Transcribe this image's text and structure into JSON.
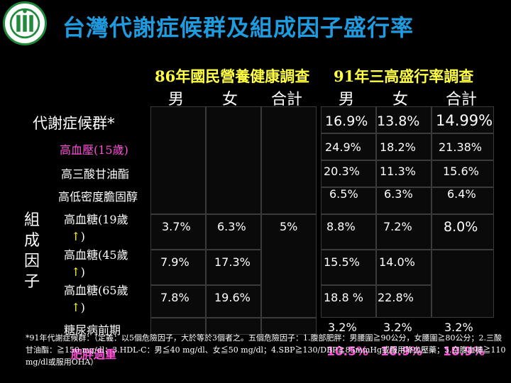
{
  "title": "台灣代謝症候群及組成因子盛行率",
  "survey1": {
    "name": "86年國民營養健康調查",
    "male": "男",
    "female": "女",
    "total": "合計"
  },
  "survey2": {
    "name": "91年三高盛行率調查",
    "male": "男",
    "female": "女",
    "total": "合計"
  },
  "rows": {
    "metabolic": {
      "label": "代謝症候群*",
      "v": [
        "16.9%",
        "13.8%",
        "14.99%"
      ]
    },
    "hypertension": {
      "label": "高血壓(15歲)",
      "v": [
        "24.9%",
        "18.2%",
        "21.38%"
      ]
    },
    "triglyceride": {
      "label": "高三酸甘油酯",
      "v": [
        "20.3%",
        "11.3%",
        "15.6%"
      ]
    },
    "hdl": {
      "label": "高低密度膽固醇",
      "v": [
        "6.5%",
        "6.3%",
        "6.4%"
      ]
    },
    "glucose19": {
      "label": "高血糖(19歲",
      "arrow": "↑",
      "close": ")",
      "a": [
        "3.7%",
        "6.3%",
        "5%"
      ],
      "b": [
        "8.8%",
        "7.2%",
        "8.0%"
      ]
    },
    "glucose45": {
      "label": "高血糖(45歲",
      "arrow": "↑",
      "close": ")",
      "a": [
        "7.9%",
        "17.3%"
      ],
      "b": [
        "15.5%",
        "14.0%"
      ]
    },
    "glucose65": {
      "label": "高血糖(65歲",
      "arrow": "↑",
      "close": ")",
      "a": [
        "7.8%",
        "19.6%"
      ],
      "b": [
        "18.8 %",
        "22.8%"
      ]
    },
    "prediabetes": {
      "label": "糖尿病前期",
      "v": [
        "3.2%",
        "3.2%",
        "3.2%"
      ]
    }
  },
  "factor_label": [
    "組",
    "成",
    "因",
    "子"
  ],
  "footnote": "*91年代謝症候群：（定義：以5個危險因子，大於等於3個者之。五個危險因子：1.腹部肥胖：男腰圍≧90公分，女腰圍≧80公分；2.三酸甘油酯：≧150 mg/dl；3.HDL-C：男≦40 mg/dl、女≦50 mg/dl；4.SBP≧130/DBP≧85mmHg或服用降血壓藥；5.空腹血糖≧110 mg/dl或服用OHA）",
  "overlay": {
    "label": "肥胖過重",
    "v": [
      "10.5%",
      "10.9%",
      "10.9%"
    ]
  }
}
